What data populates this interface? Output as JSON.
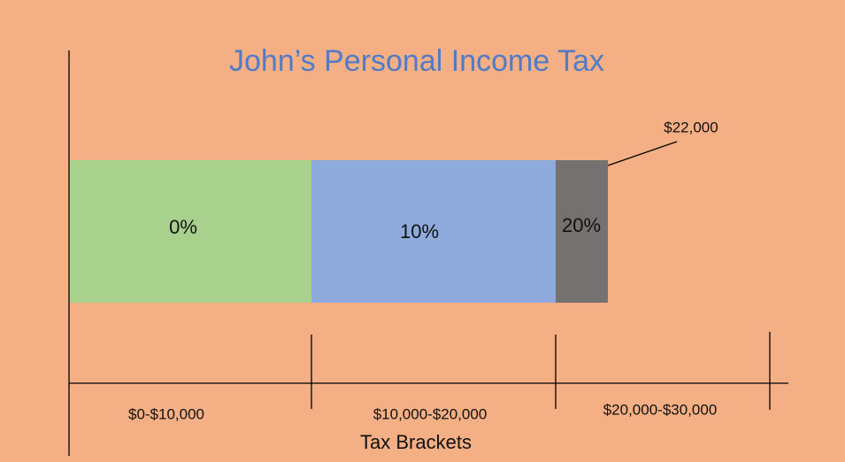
{
  "title": "John’s Personal Income Tax",
  "segments": [
    {
      "label": "0%"
    },
    {
      "label": "10%"
    },
    {
      "label": "20%"
    }
  ],
  "callout": "$22,000",
  "brackets": [
    "$0-$10,000",
    "$10,000-$20,000",
    "$20,000-$30,000"
  ],
  "axis_label": "Tax Brackets"
}
